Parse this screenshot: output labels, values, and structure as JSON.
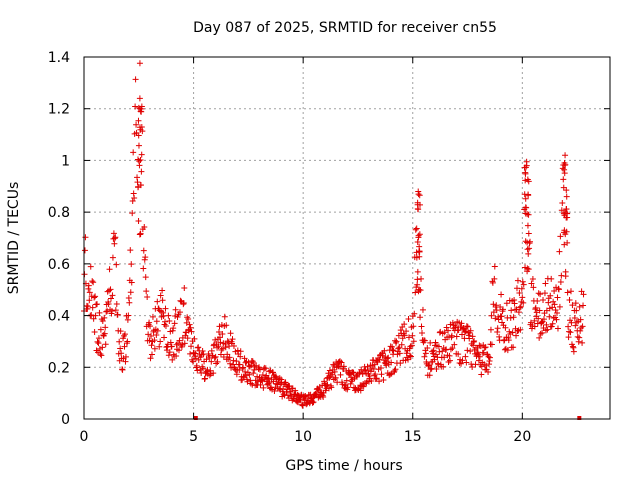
{
  "chart_data": {
    "type": "scatter",
    "title": "Day 087 of 2025, SRMTID for receiver cn55",
    "xlabel": "GPS time / hours",
    "ylabel": "SRMTID / TECUs",
    "xlim": [
      0,
      24
    ],
    "ylim": [
      0,
      1.4
    ],
    "x_ticks": [
      0,
      5,
      10,
      15,
      20
    ],
    "x_tick_labels": [
      "0",
      "5",
      "10",
      "15",
      "20"
    ],
    "y_ticks": [
      0,
      0.2,
      0.4,
      0.6,
      0.8,
      1.0,
      1.2,
      1.4
    ],
    "y_tick_labels": [
      "0",
      "0.2",
      "0.4",
      "0.6",
      "0.8",
      "1",
      "1.2",
      "1.4"
    ],
    "grid": true,
    "marker_color": "#e00000",
    "series": [
      {
        "name": "SRMTID",
        "marker": "plus",
        "profile": [
          [
            0.0,
            0.58
          ],
          [
            0.3,
            0.55
          ],
          [
            0.5,
            0.38
          ],
          [
            0.8,
            0.33
          ],
          [
            1.0,
            0.32
          ],
          [
            1.2,
            0.5
          ],
          [
            1.4,
            0.6
          ],
          [
            1.6,
            0.3
          ],
          [
            1.8,
            0.25
          ],
          [
            2.0,
            0.35
          ],
          [
            2.2,
            0.7
          ],
          [
            2.4,
            1.2
          ],
          [
            2.6,
            1.1
          ],
          [
            2.8,
            0.5
          ],
          [
            3.0,
            0.3
          ],
          [
            3.3,
            0.35
          ],
          [
            3.6,
            0.42
          ],
          [
            4.0,
            0.3
          ],
          [
            4.3,
            0.35
          ],
          [
            4.6,
            0.4
          ],
          [
            5.0,
            0.28
          ],
          [
            5.3,
            0.22
          ],
          [
            5.6,
            0.2
          ],
          [
            6.0,
            0.25
          ],
          [
            6.4,
            0.32
          ],
          [
            6.8,
            0.25
          ],
          [
            7.2,
            0.2
          ],
          [
            7.6,
            0.18
          ],
          [
            8.0,
            0.16
          ],
          [
            8.5,
            0.15
          ],
          [
            9.0,
            0.12
          ],
          [
            9.5,
            0.1
          ],
          [
            10.0,
            0.07
          ],
          [
            10.5,
            0.08
          ],
          [
            11.0,
            0.12
          ],
          [
            11.5,
            0.2
          ],
          [
            12.0,
            0.15
          ],
          [
            12.5,
            0.14
          ],
          [
            13.0,
            0.17
          ],
          [
            13.5,
            0.2
          ],
          [
            14.0,
            0.22
          ],
          [
            14.5,
            0.28
          ],
          [
            15.0,
            0.32
          ],
          [
            15.2,
            0.7
          ],
          [
            15.4,
            0.45
          ],
          [
            15.6,
            0.22
          ],
          [
            16.0,
            0.25
          ],
          [
            16.5,
            0.28
          ],
          [
            17.0,
            0.3
          ],
          [
            17.5,
            0.28
          ],
          [
            18.0,
            0.25
          ],
          [
            18.5,
            0.2
          ],
          [
            18.7,
            0.55
          ],
          [
            18.9,
            0.4
          ],
          [
            19.2,
            0.35
          ],
          [
            19.6,
            0.38
          ],
          [
            20.0,
            0.5
          ],
          [
            20.2,
            0.85
          ],
          [
            20.4,
            0.45
          ],
          [
            20.8,
            0.42
          ],
          [
            21.2,
            0.45
          ],
          [
            21.6,
            0.4
          ],
          [
            21.9,
            0.85
          ],
          [
            22.1,
            0.42
          ],
          [
            22.4,
            0.35
          ],
          [
            22.8,
            0.4
          ]
        ],
        "peaks": [
          [
            2.55,
            1.24
          ],
          [
            15.25,
            0.88
          ],
          [
            20.2,
            0.98
          ],
          [
            21.95,
            1.02
          ]
        ],
        "x_range": [
          0.0,
          22.8
        ]
      }
    ],
    "axis_markers": [
      5.1,
      22.6
    ]
  }
}
